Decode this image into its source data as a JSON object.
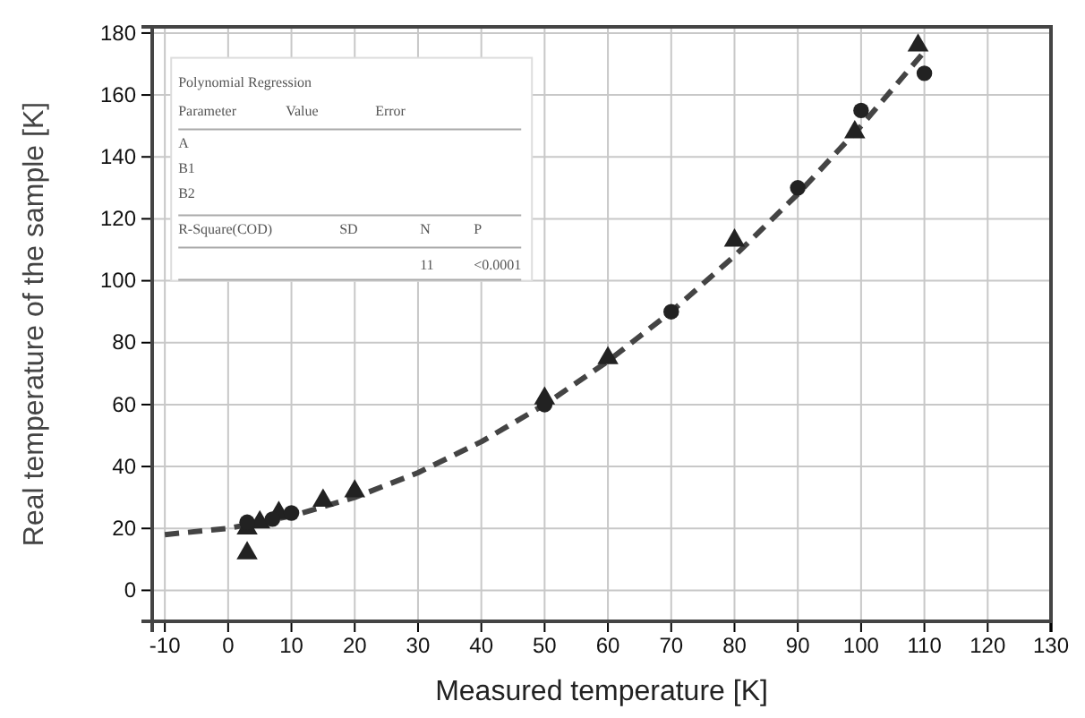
{
  "chart_data": {
    "type": "scatter",
    "xlabel": "Measured temperature [K]",
    "ylabel": "Real  temperature of the sample [K]",
    "xlim": [
      -12,
      130
    ],
    "xticks": [
      -10,
      0,
      10,
      20,
      30,
      40,
      50,
      60,
      70,
      80,
      90,
      100,
      110,
      120,
      130
    ],
    "ylim": [
      -10,
      182
    ],
    "yticks": [
      0,
      20,
      40,
      60,
      80,
      100,
      120,
      140,
      160,
      180
    ],
    "grid": true,
    "series": [
      {
        "marker": "triangle",
        "color": "#222222",
        "x": [
          3,
          3,
          5,
          8,
          15,
          20,
          50,
          60,
          80,
          99,
          109
        ],
        "values": [
          12,
          20,
          22,
          25,
          29,
          32,
          62,
          75,
          113,
          148,
          176
        ]
      },
      {
        "marker": "circle",
        "color": "#222222",
        "x": [
          3,
          7,
          10,
          50,
          70,
          90,
          100,
          110
        ],
        "values": [
          22,
          23,
          25,
          60,
          90,
          130,
          155,
          167
        ]
      },
      {
        "type": "line",
        "line_style": "dashed",
        "marker": "none",
        "color": "#444444",
        "x": [
          -10,
          0,
          10,
          20,
          30,
          40,
          50,
          60,
          70,
          80,
          90,
          100,
          110
        ],
        "values": [
          18,
          20,
          24,
          30,
          38,
          48,
          60,
          74,
          90,
          108,
          128,
          150,
          174
        ]
      }
    ],
    "annotations": [
      "Polynomial Regression",
      "Parameter",
      "Value",
      "Error",
      "A",
      "B1",
      "B2",
      "R-Square(COD)",
      "SD",
      "N",
      "P",
      "11",
      "<0.0001"
    ]
  }
}
